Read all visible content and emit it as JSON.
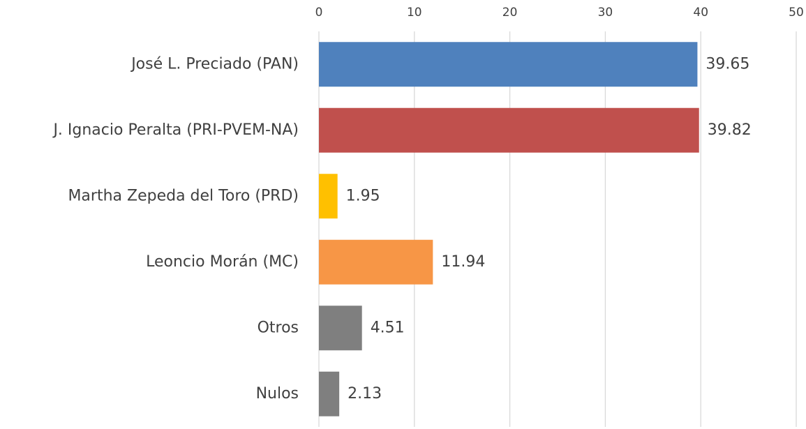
{
  "chart_data": {
    "type": "bar",
    "orientation": "horizontal",
    "categories": [
      "José L. Preciado (PAN)",
      "J. Ignacio Peralta (PRI-PVEM-NA)",
      "Martha Zepeda del Toro (PRD)",
      "Leoncio Morán (MC)",
      "Otros",
      "Nulos"
    ],
    "values": [
      39.65,
      39.82,
      1.95,
      11.94,
      4.51,
      2.13
    ],
    "colors": [
      "#4f81bd",
      "#c0504d",
      "#ffc000",
      "#f79646",
      "#7f7f7f",
      "#7f7f7f"
    ],
    "xlim": [
      0,
      50
    ],
    "xticks": [
      0,
      10,
      20,
      30,
      40,
      50
    ],
    "grid": true,
    "data_labels": true
  }
}
